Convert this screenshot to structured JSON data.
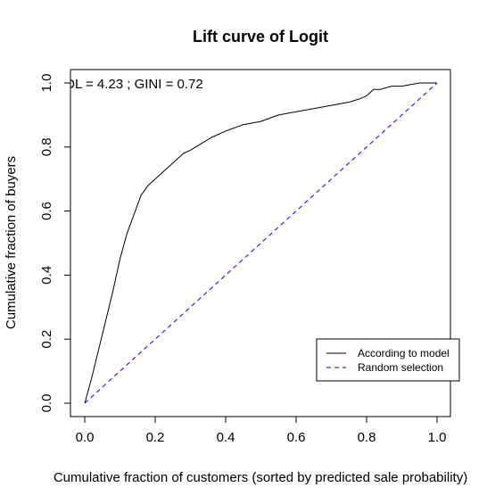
{
  "chart_data": {
    "type": "line",
    "title": "Lift curve of Logit",
    "xlabel": "Cumulative fraction of customers (sorted by predicted sale probability)",
    "ylabel": "Cumulative fraction of buyers",
    "xlim": [
      0,
      1
    ],
    "ylim": [
      0,
      1
    ],
    "x_ticks": [
      "0.0",
      "0.2",
      "0.4",
      "0.6",
      "0.8",
      "1.0"
    ],
    "y_ticks": [
      "0.0",
      "0.2",
      "0.4",
      "0.6",
      "0.8",
      "1.0"
    ],
    "annotation": "TDL = 4.23 ; GINI = 0.72",
    "grid": false,
    "legend_position": "bottom-right",
    "series": [
      {
        "name": "According to model",
        "color": "#000000",
        "style": "solid",
        "x": [
          0,
          0.02,
          0.04,
          0.06,
          0.08,
          0.1,
          0.12,
          0.14,
          0.16,
          0.18,
          0.2,
          0.22,
          0.25,
          0.28,
          0.3,
          0.33,
          0.36,
          0.4,
          0.45,
          0.5,
          0.55,
          0.6,
          0.65,
          0.7,
          0.75,
          0.78,
          0.8,
          0.82,
          0.84,
          0.87,
          0.9,
          0.95,
          1.0
        ],
        "y": [
          0,
          0.08,
          0.17,
          0.26,
          0.35,
          0.45,
          0.53,
          0.59,
          0.65,
          0.68,
          0.7,
          0.72,
          0.75,
          0.78,
          0.79,
          0.81,
          0.83,
          0.85,
          0.87,
          0.88,
          0.9,
          0.91,
          0.92,
          0.93,
          0.94,
          0.95,
          0.96,
          0.98,
          0.98,
          0.99,
          0.99,
          1.0,
          1.0
        ]
      },
      {
        "name": "Random selection",
        "color": "#0000ff",
        "style": "dashed",
        "x": [
          0,
          1
        ],
        "y": [
          0,
          1
        ]
      }
    ]
  }
}
